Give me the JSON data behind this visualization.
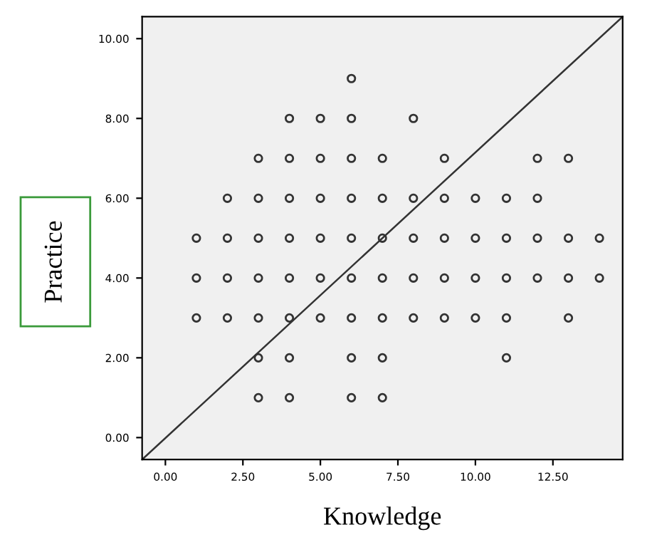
{
  "chart_data": {
    "type": "scatter",
    "xlabel": "Knowledge",
    "ylabel": "Practice",
    "xlim": [
      -0.75,
      14.75
    ],
    "ylim": [
      -0.55,
      10.55
    ],
    "xticks": [
      {
        "value": 0,
        "label": "0.00"
      },
      {
        "value": 2.5,
        "label": "2.50"
      },
      {
        "value": 5,
        "label": "5.00"
      },
      {
        "value": 7.5,
        "label": "7.50"
      },
      {
        "value": 10,
        "label": "10.00"
      },
      {
        "value": 12.5,
        "label": "12.50"
      }
    ],
    "yticks": [
      {
        "value": 0,
        "label": "0.00"
      },
      {
        "value": 2,
        "label": "2.00"
      },
      {
        "value": 4,
        "label": "4.00"
      },
      {
        "value": 6,
        "label": "6.00"
      },
      {
        "value": 8,
        "label": "8.00"
      },
      {
        "value": 10,
        "label": "10.00"
      }
    ],
    "grid": false,
    "series": [
      {
        "type": "scatter",
        "marker": "circle",
        "color": "#333333",
        "x": [
          6,
          4,
          5,
          6,
          8,
          3,
          4,
          5,
          6,
          7,
          9,
          12,
          13,
          2,
          3,
          4,
          5,
          6,
          7,
          8,
          9,
          10,
          11,
          12,
          1,
          2,
          3,
          4,
          5,
          6,
          7,
          8,
          9,
          10,
          11,
          12,
          13,
          14,
          1,
          2,
          3,
          4,
          5,
          6,
          7,
          8,
          9,
          10,
          11,
          12,
          13,
          14,
          1,
          2,
          3,
          4,
          5,
          6,
          7,
          8,
          9,
          10,
          11,
          13,
          3,
          4,
          6,
          7,
          11,
          3,
          4,
          6,
          7
        ],
        "values": [
          9,
          8,
          8,
          8,
          8,
          7,
          7,
          7,
          7,
          7,
          7,
          7,
          7,
          6,
          6,
          6,
          6,
          6,
          6,
          6,
          6,
          6,
          6,
          6,
          5,
          5,
          5,
          5,
          5,
          5,
          5,
          5,
          5,
          5,
          5,
          5,
          5,
          5,
          4,
          4,
          4,
          4,
          4,
          4,
          4,
          4,
          4,
          4,
          4,
          4,
          4,
          4,
          3,
          3,
          3,
          3,
          3,
          3,
          3,
          3,
          3,
          3,
          3,
          3,
          2,
          2,
          2,
          2,
          2,
          1,
          1,
          1,
          1
        ]
      },
      {
        "type": "line",
        "color": "#333333",
        "x": [
          -0.75,
          14.75
        ],
        "values": [
          -0.55,
          10.55
        ]
      }
    ]
  }
}
